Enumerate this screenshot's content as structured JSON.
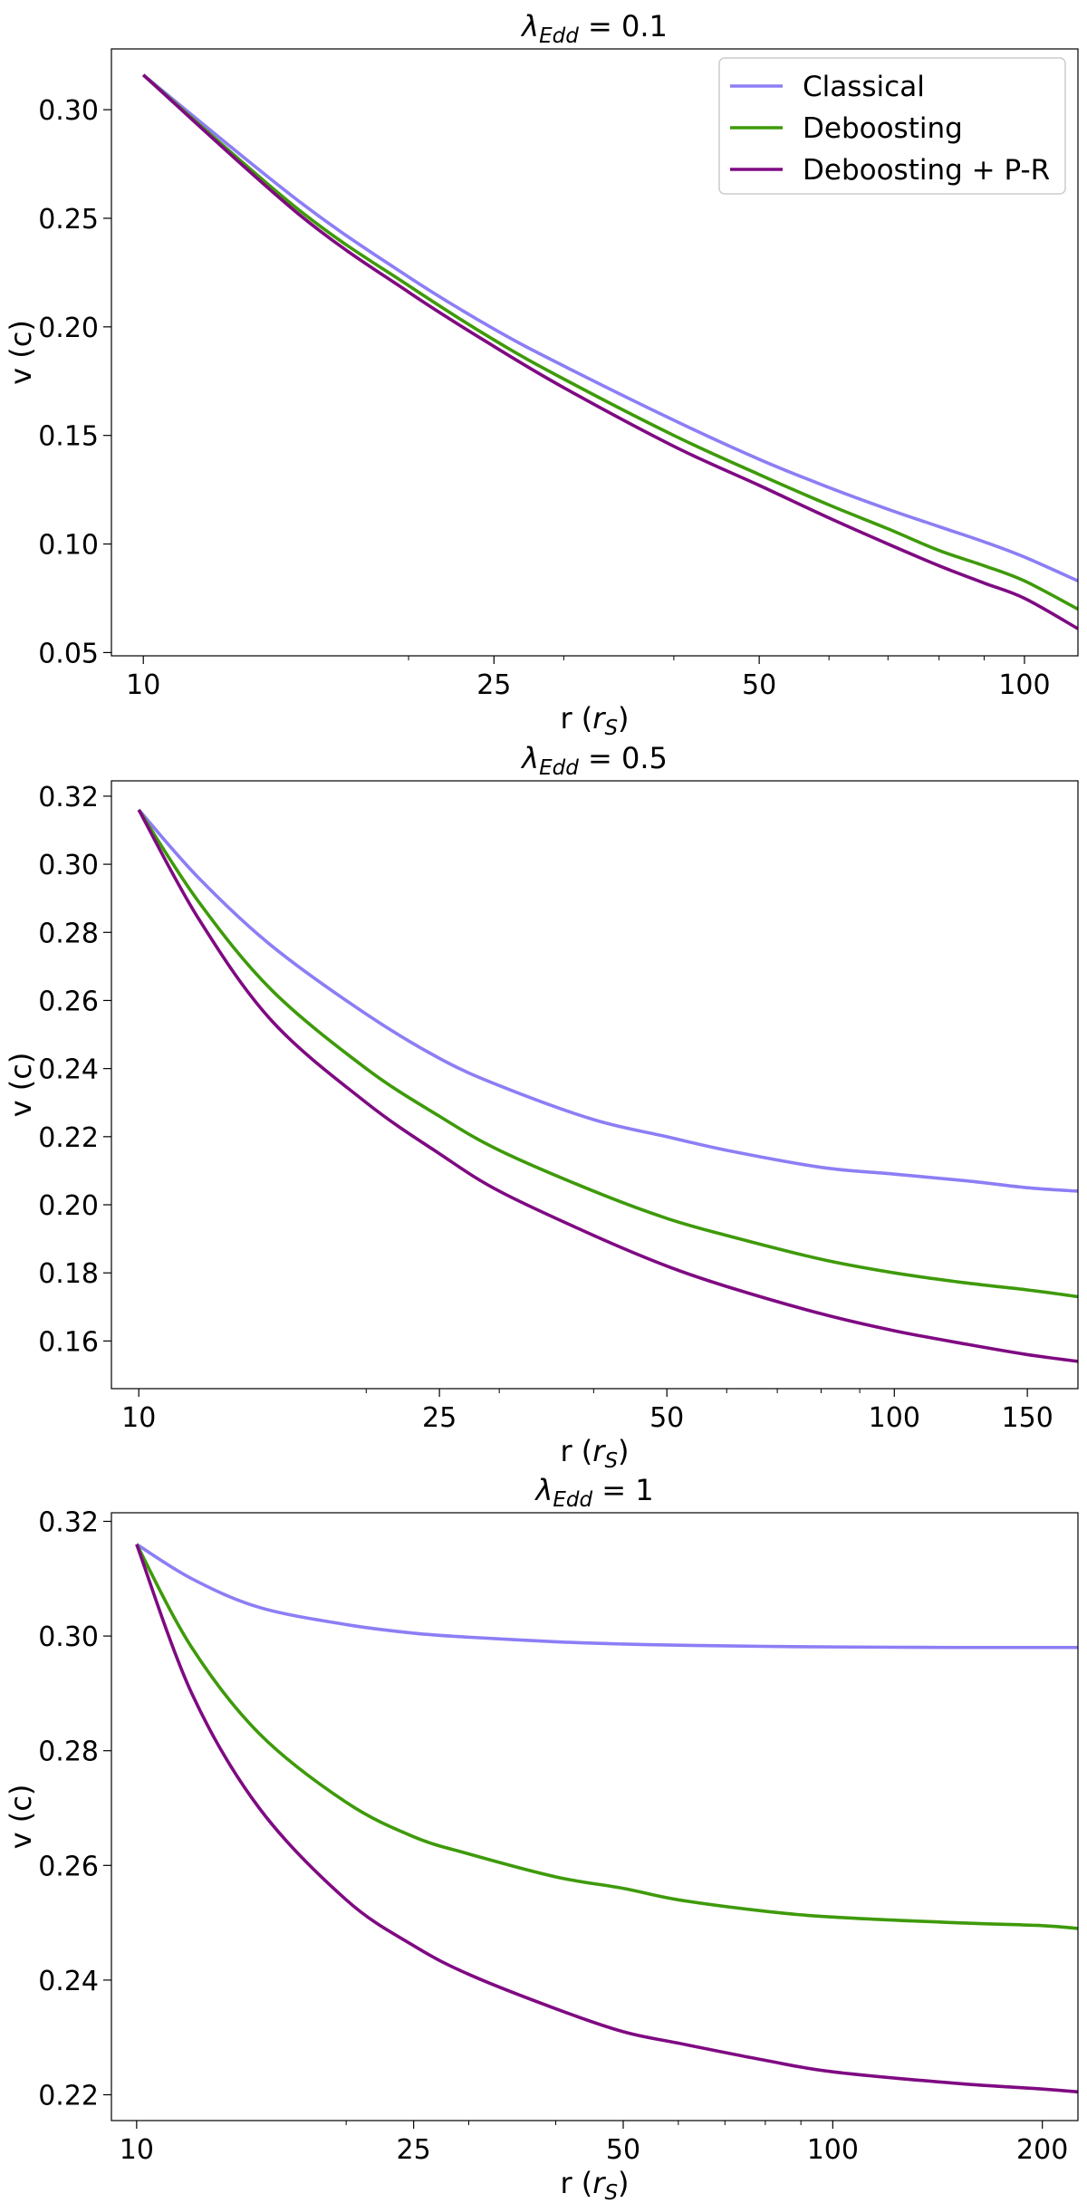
{
  "colors": {
    "classical": "#8c7ef5",
    "deboosting": "#3e9a0a",
    "deboosting_pr": "#7f0a82"
  },
  "legend": {
    "placement": "top-right",
    "items": [
      "Classical",
      "Deboosting",
      "Deboosting + P-R"
    ]
  },
  "chart_data": [
    {
      "type": "line",
      "title": {
        "prefix": "λ",
        "sub": "Edd",
        "suffix": " = 0.1"
      },
      "xlabel": {
        "prefix": "r (",
        "var": "r",
        "sub": "S",
        "suffix": ")"
      },
      "ylabel": "v (c)",
      "xscale": "log",
      "xlim": [
        9.2,
        115
      ],
      "ylim": [
        0.0485,
        0.328
      ],
      "xticks": [
        10,
        25,
        50,
        100
      ],
      "yticks": [
        0.05,
        0.1,
        0.15,
        0.2,
        0.25,
        0.3
      ],
      "ytick_labels": [
        "0.05",
        "0.10",
        "0.15",
        "0.20",
        "0.25",
        "0.30"
      ],
      "series": [
        {
          "name": "Classical",
          "x": [
            10,
            15,
            20,
            25,
            30,
            40,
            50,
            60,
            70,
            80,
            90,
            100,
            115
          ],
          "y": [
            0.316,
            0.258,
            0.223,
            0.199,
            0.182,
            0.157,
            0.139,
            0.126,
            0.116,
            0.108,
            0.101,
            0.094,
            0.083
          ]
        },
        {
          "name": "Deboosting",
          "x": [
            10,
            15,
            20,
            25,
            30,
            40,
            50,
            60,
            70,
            80,
            90,
            100,
            115
          ],
          "y": [
            0.316,
            0.254,
            0.219,
            0.194,
            0.176,
            0.15,
            0.132,
            0.118,
            0.107,
            0.097,
            0.09,
            0.083,
            0.07
          ]
        },
        {
          "name": "Deboosting + P-R",
          "x": [
            10,
            15,
            20,
            25,
            30,
            40,
            50,
            60,
            70,
            80,
            90,
            100,
            115
          ],
          "y": [
            0.316,
            0.252,
            0.216,
            0.191,
            0.172,
            0.145,
            0.127,
            0.112,
            0.1,
            0.09,
            0.082,
            0.075,
            0.061
          ]
        }
      ]
    },
    {
      "type": "line",
      "title": {
        "prefix": "λ",
        "sub": "Edd",
        "suffix": " = 0.5"
      },
      "xlabel": {
        "prefix": "r (",
        "var": "r",
        "sub": "S",
        "suffix": ")"
      },
      "ylabel": "v (c)",
      "xscale": "log",
      "xlim": [
        9.2,
        175
      ],
      "ylim": [
        0.146,
        0.3245
      ],
      "xticks": [
        10,
        25,
        50,
        100,
        150
      ],
      "yticks": [
        0.16,
        0.18,
        0.2,
        0.22,
        0.24,
        0.26,
        0.28,
        0.3,
        0.32
      ],
      "ytick_labels": [
        "0.16",
        "0.18",
        "0.20",
        "0.22",
        "0.24",
        "0.26",
        "0.28",
        "0.30",
        "0.32"
      ],
      "series": [
        {
          "name": "Classical",
          "x": [
            10,
            12,
            15,
            20,
            25,
            30,
            40,
            50,
            60,
            80,
            100,
            125,
            150,
            175
          ],
          "y": [
            0.316,
            0.296,
            0.276,
            0.256,
            0.243,
            0.235,
            0.225,
            0.22,
            0.216,
            0.211,
            0.209,
            0.207,
            0.205,
            0.204
          ]
        },
        {
          "name": "Deboosting",
          "x": [
            10,
            12,
            15,
            20,
            25,
            30,
            40,
            50,
            60,
            80,
            100,
            125,
            150,
            175
          ],
          "y": [
            0.316,
            0.289,
            0.263,
            0.24,
            0.226,
            0.216,
            0.204,
            0.196,
            0.191,
            0.184,
            0.18,
            0.177,
            0.175,
            0.173
          ]
        },
        {
          "name": "Deboosting + P-R",
          "x": [
            10,
            12,
            15,
            20,
            25,
            30,
            40,
            50,
            60,
            80,
            100,
            125,
            150,
            175
          ],
          "y": [
            0.316,
            0.284,
            0.254,
            0.23,
            0.215,
            0.204,
            0.191,
            0.182,
            0.176,
            0.168,
            0.163,
            0.159,
            0.156,
            0.154
          ]
        }
      ]
    },
    {
      "type": "line",
      "title": {
        "prefix": "λ",
        "sub": "Edd",
        "suffix": " =  1"
      },
      "xlabel": {
        "prefix": "r (",
        "var": "r",
        "sub": "S",
        "suffix": ")"
      },
      "ylabel": "v (c)",
      "xscale": "log",
      "xlim": [
        9.2,
        225
      ],
      "ylim": [
        0.2155,
        0.3215
      ],
      "xticks": [
        10,
        25,
        50,
        100,
        200
      ],
      "yticks": [
        0.22,
        0.24,
        0.26,
        0.28,
        0.3,
        0.32
      ],
      "ytick_labels": [
        "0.22",
        "0.24",
        "0.26",
        "0.28",
        "0.30",
        "0.32"
      ],
      "series": [
        {
          "name": "Classical",
          "x": [
            10,
            12,
            15,
            20,
            25,
            30,
            40,
            50,
            60,
            80,
            100,
            150,
            200,
            225
          ],
          "y": [
            0.316,
            0.31,
            0.305,
            0.302,
            0.3005,
            0.2998,
            0.299,
            0.2986,
            0.2984,
            0.2982,
            0.2981,
            0.298,
            0.298,
            0.298
          ]
        },
        {
          "name": "Deboosting",
          "x": [
            10,
            12,
            15,
            20,
            25,
            30,
            40,
            50,
            60,
            80,
            100,
            150,
            200,
            225
          ],
          "y": [
            0.316,
            0.298,
            0.283,
            0.271,
            0.265,
            0.262,
            0.258,
            0.256,
            0.254,
            0.252,
            0.251,
            0.25,
            0.2495,
            0.249
          ]
        },
        {
          "name": "Deboosting + P-R",
          "x": [
            10,
            12,
            15,
            20,
            25,
            30,
            40,
            50,
            60,
            80,
            100,
            150,
            200,
            225
          ],
          "y": [
            0.316,
            0.29,
            0.27,
            0.254,
            0.246,
            0.241,
            0.235,
            0.231,
            0.229,
            0.226,
            0.224,
            0.222,
            0.221,
            0.2205
          ]
        }
      ]
    }
  ]
}
